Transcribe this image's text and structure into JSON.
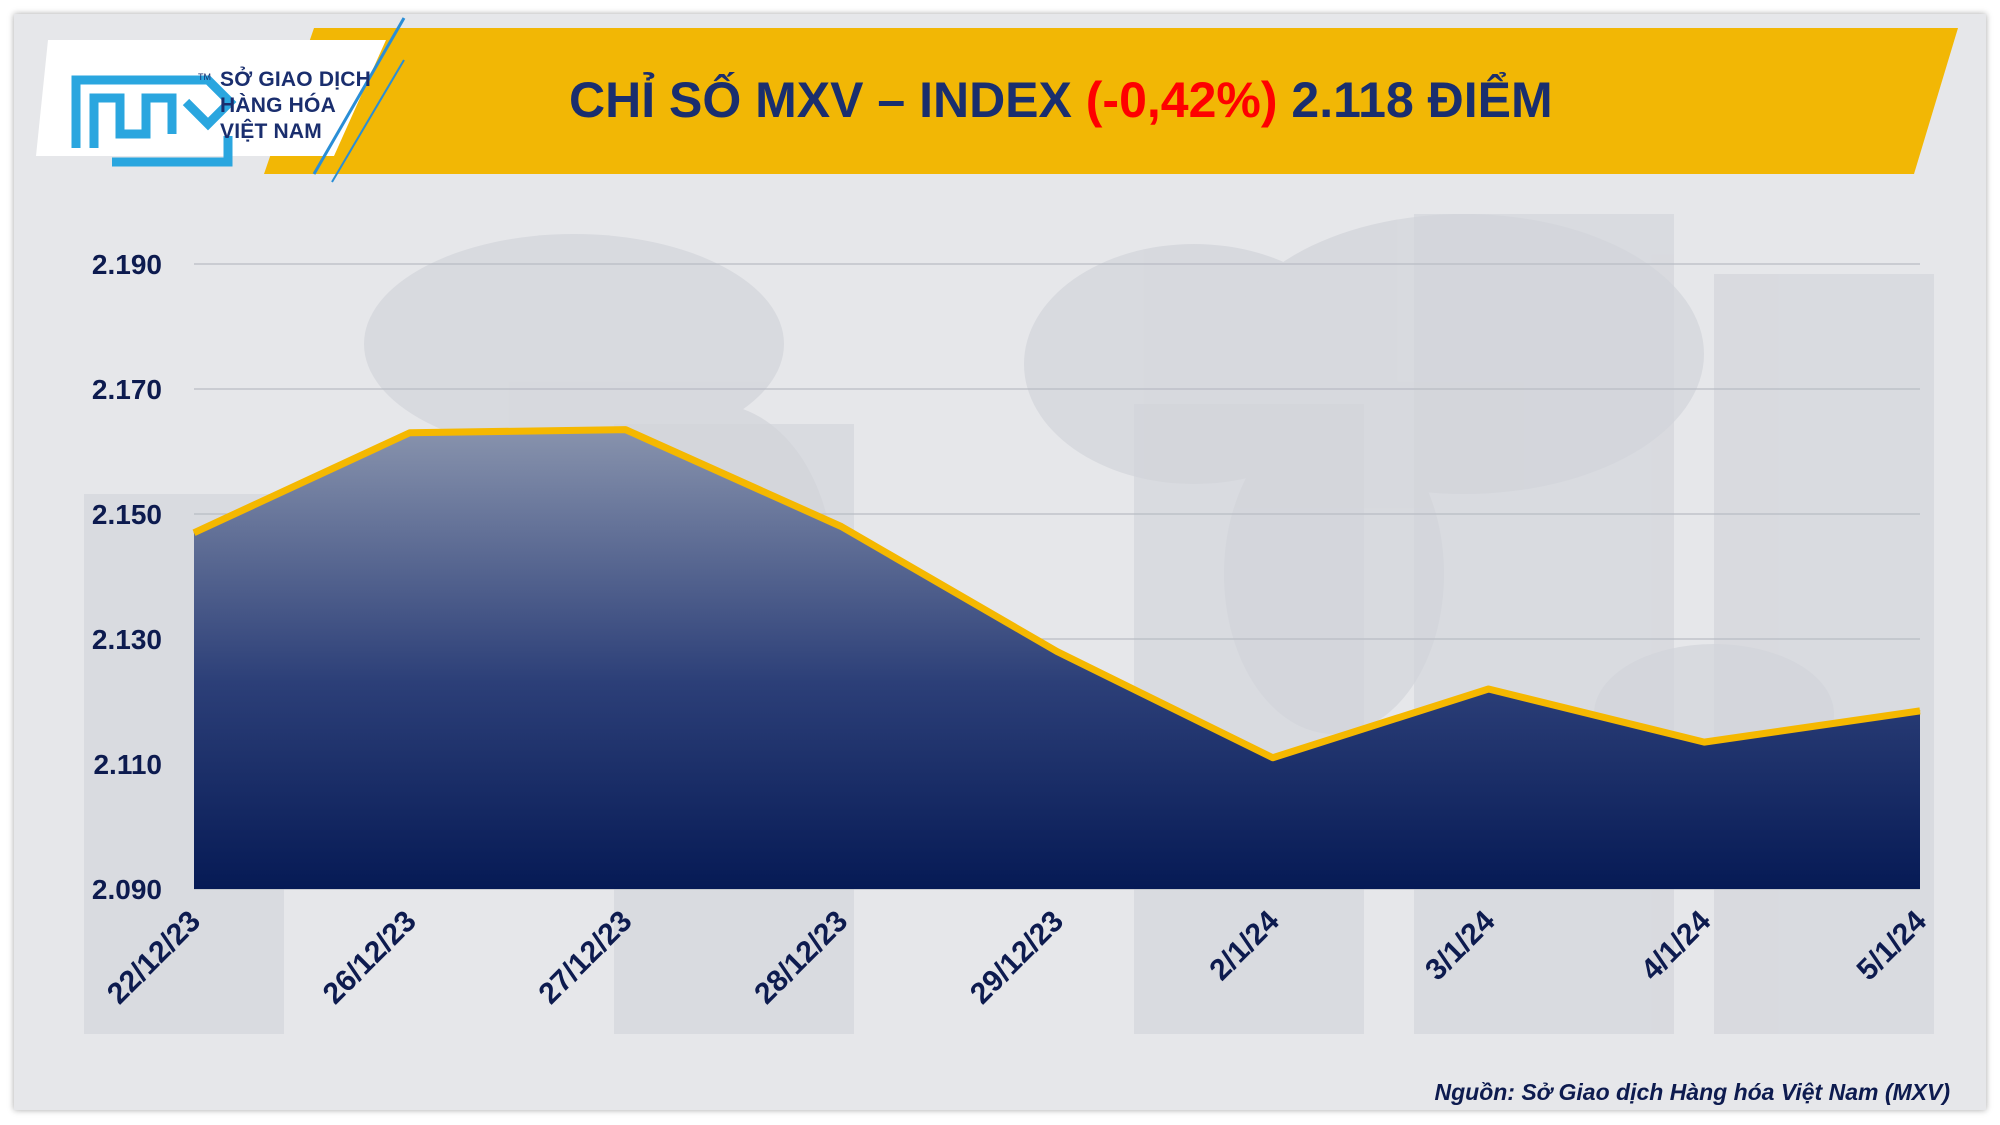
{
  "header": {
    "logo_lines": [
      "SỞ GIAO DỊCH",
      "HÀNG HÓA",
      "VIỆT NAM"
    ],
    "logo_tm": "TM",
    "title_main": "CHỈ SỐ MXV – INDEX ",
    "title_change": "(-0,42%)",
    "title_value": " 2.118 ĐIỂM"
  },
  "colors": {
    "banner": "#f2b705",
    "line": "#f5b800",
    "area_top": "#8893ad",
    "area_bottom": "#061a55",
    "text": "#0d1b4f",
    "negative": "#ff0000"
  },
  "chart_data": {
    "type": "area",
    "categories": [
      "22/12/23",
      "26/12/23",
      "27/12/23",
      "28/12/23",
      "29/12/23",
      "2/1/24",
      "3/1/24",
      "4/1/24",
      "5/1/24"
    ],
    "values": [
      2147,
      2163,
      2163.5,
      2148,
      2128,
      2111,
      2122,
      2113.5,
      2118.5
    ],
    "y_ticks": [
      "2.090",
      "2.110",
      "2.130",
      "2.150",
      "2.170",
      "2.190"
    ],
    "ylim": [
      2090,
      2190
    ],
    "grid": true,
    "legend": "none"
  },
  "footer": {
    "source": "Nguồn: Sở Giao dịch Hàng hóa Việt Nam (MXV)"
  }
}
